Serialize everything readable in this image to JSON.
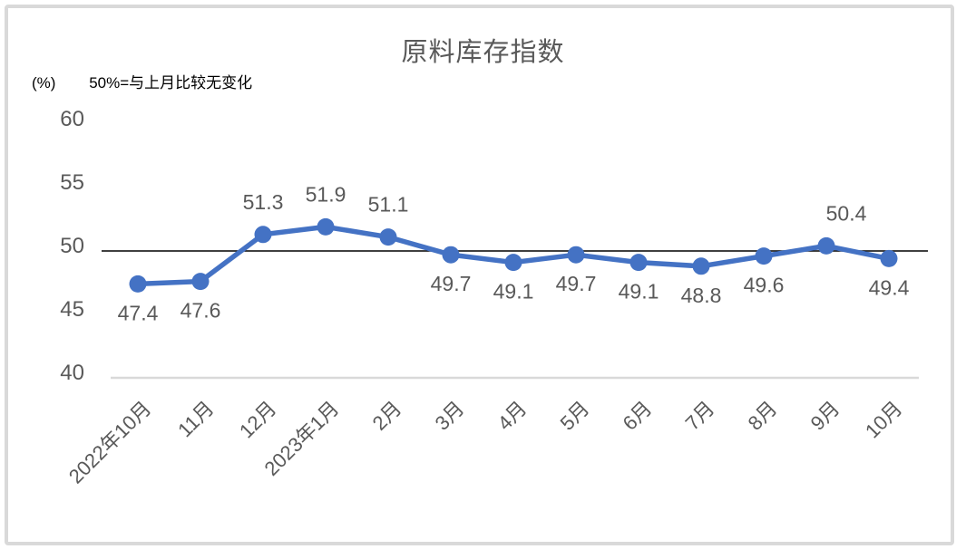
{
  "chart_data": {
    "type": "line",
    "title": "原料库存指数",
    "unit_label": "(%)",
    "note": "50%=与上月比较无变化",
    "categories": [
      "2022年10月",
      "11月",
      "12月",
      "2023年1月",
      "2月",
      "3月",
      "4月",
      "5月",
      "6月",
      "7月",
      "8月",
      "9月",
      "10月"
    ],
    "values": [
      47.4,
      47.6,
      51.3,
      51.9,
      51.1,
      49.7,
      49.1,
      49.7,
      49.1,
      48.8,
      49.6,
      50.4,
      49.4
    ],
    "yticks": [
      40,
      45,
      50,
      55,
      60
    ],
    "ylim": [
      40,
      60
    ],
    "reference_value": 50,
    "grid": "off",
    "legend": "none",
    "colors": {
      "series": "#4472C4",
      "reference_line": "#000000",
      "axis_line": "#d9d9d9",
      "tick_text": "#595959",
      "data_label_text": "#595959",
      "title_text": "#595959",
      "note_text": "#000000",
      "frame_border": "#d9d9d9"
    }
  }
}
